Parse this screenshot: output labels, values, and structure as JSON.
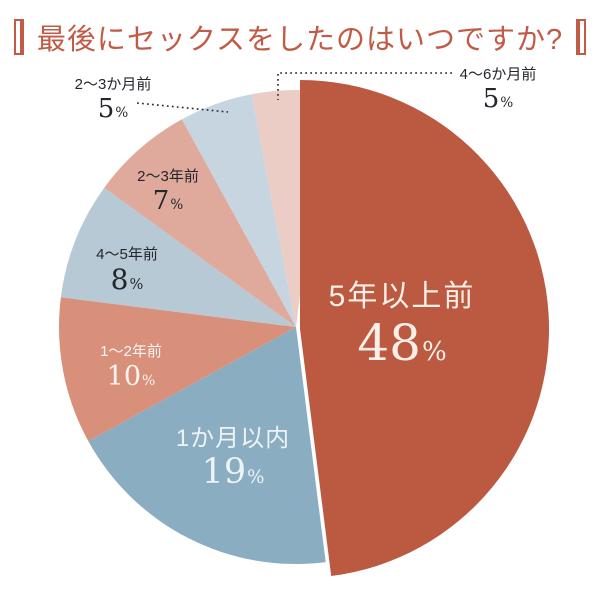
{
  "chart_data": {
    "type": "pie",
    "title": "最後にセックスをしたのはいつですか?",
    "unit": "%",
    "start_angle": "12-oclock",
    "direction": "clockwise",
    "legend": "none",
    "title_color": "#c25b46",
    "slices": [
      {
        "label": "5年以上前",
        "value": 48,
        "color": "#bc5a41",
        "label_color": "#f9efe9",
        "label_placement": "inside",
        "emphasized": true
      },
      {
        "label": "1か月以内",
        "value": 19,
        "color": "#8badc2",
        "label_color": "#eef3f6",
        "label_placement": "inside"
      },
      {
        "label": "1〜2年前",
        "value": 10,
        "color": "#d8907b",
        "label_color": "#fcf4f0",
        "label_placement": "inside"
      },
      {
        "label": "4〜5年前",
        "value": 8,
        "color": "#b7c9d5",
        "label_color": "#23272d",
        "label_placement": "inside"
      },
      {
        "label": "2〜3年前",
        "value": 7,
        "color": "#dfaa9b",
        "label_color": "#23272d",
        "label_placement": "inside"
      },
      {
        "label": "2〜3か月前",
        "value": 5,
        "color": "#c6d5e0",
        "label_color": "#23272d",
        "label_placement": "outside-left",
        "leader_line": true
      },
      {
        "label": "4〜6か月前",
        "value": 5,
        "color": "#eccdc5",
        "label_color": "#23272d",
        "label_placement": "outside-right",
        "leader_line": true
      }
    ],
    "leader_line_color": "#2a2a2a"
  }
}
